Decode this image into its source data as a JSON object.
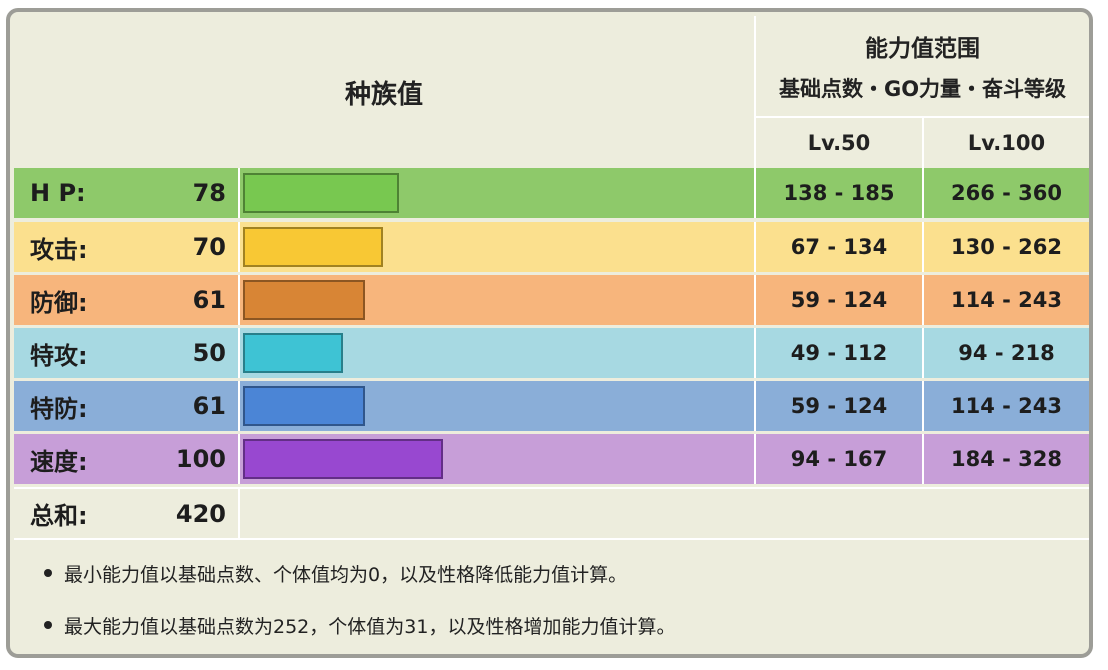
{
  "header": {
    "base_stats_label": "种族值",
    "range_title": "能力值范围",
    "range_subtitle": "基础点数・GO力量・奋斗等级",
    "lv50_label": "Lv.50",
    "lv100_label": "Lv.100"
  },
  "max_stat_scale": 255,
  "stats": [
    {
      "name": "H P:",
      "value": 78,
      "lv50": "138 - 185",
      "lv100": "266 - 360",
      "row_color": "#8ec96a",
      "bar_color": "#78c850"
    },
    {
      "name": "攻击:",
      "value": 70,
      "lv50": "67 - 134",
      "lv100": "130 - 262",
      "row_color": "#fbe08e",
      "bar_color": "#f8c834"
    },
    {
      "name": "防御:",
      "value": 61,
      "lv50": "59 - 124",
      "lv100": "114 - 243",
      "row_color": "#f7b57c",
      "bar_color": "#d88535"
    },
    {
      "name": "特攻:",
      "value": 50,
      "lv50": "49 - 112",
      "lv100": "94 - 218",
      "row_color": "#a7d9e2",
      "bar_color": "#3ec3d4"
    },
    {
      "name": "特防:",
      "value": 61,
      "lv50": "59 - 124",
      "lv100": "114 - 243",
      "row_color": "#8aaed8",
      "bar_color": "#4b85d6"
    },
    {
      "name": "速度:",
      "value": 100,
      "lv50": "94 - 167",
      "lv100": "184 - 328",
      "row_color": "#c79ed8",
      "bar_color": "#9848d0"
    }
  ],
  "total": {
    "name": "总和:",
    "value": 420
  },
  "notes": [
    "最小能力值以基础点数、个体值均为0，以及性格降低能力值计算。",
    "最大能力值以基础点数为252，个体值为31，以及性格增加能力值计算。"
  ]
}
